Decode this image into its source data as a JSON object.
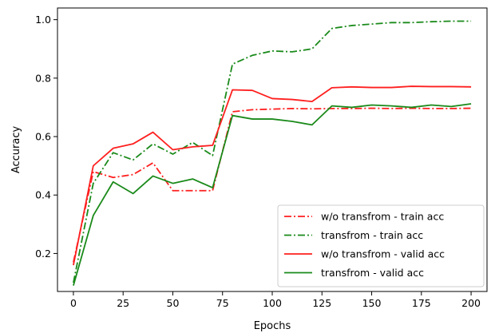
{
  "chart_data": {
    "type": "line",
    "title": "",
    "xlabel": "Epochs",
    "ylabel": "Accuracy",
    "xlim": [
      -8,
      208
    ],
    "ylim": [
      0.07,
      1.04
    ],
    "xticks": [
      0,
      25,
      50,
      75,
      100,
      125,
      150,
      175,
      200
    ],
    "yticks": [
      0.2,
      0.4,
      0.6,
      0.8,
      1.0
    ],
    "ytick_labels": [
      "0.2",
      "0.4",
      "0.6",
      "0.8",
      "1.0"
    ],
    "grid": false,
    "legend": "lower-right",
    "x": [
      0,
      10,
      20,
      30,
      40,
      50,
      60,
      70,
      80,
      90,
      100,
      110,
      120,
      130,
      140,
      150,
      160,
      170,
      180,
      190,
      200
    ],
    "series": [
      {
        "name": "w/o transfrom - train acc",
        "color": "#ff1f1f",
        "style": "dashdot",
        "values": [
          0.17,
          0.48,
          0.46,
          0.47,
          0.51,
          0.415,
          0.415,
          0.415,
          0.685,
          0.692,
          0.694,
          0.696,
          0.695,
          0.696,
          0.696,
          0.697,
          0.696,
          0.697,
          0.696,
          0.696,
          0.697
        ]
      },
      {
        "name": "transfrom - train acc",
        "color": "#1a8a1a",
        "style": "dashdot",
        "values": [
          0.1,
          0.44,
          0.545,
          0.52,
          0.575,
          0.54,
          0.58,
          0.535,
          0.848,
          0.878,
          0.893,
          0.89,
          0.9,
          0.97,
          0.98,
          0.985,
          0.99,
          0.99,
          0.993,
          0.995,
          0.995
        ]
      },
      {
        "name": "w/o transfrom - valid acc",
        "color": "#ff1f1f",
        "style": "solid",
        "values": [
          0.16,
          0.5,
          0.56,
          0.575,
          0.615,
          0.555,
          0.565,
          0.57,
          0.76,
          0.758,
          0.73,
          0.727,
          0.72,
          0.767,
          0.77,
          0.768,
          0.768,
          0.772,
          0.771,
          0.771,
          0.77
        ]
      },
      {
        "name": "transfrom - valid acc",
        "color": "#1a8a1a",
        "style": "solid",
        "values": [
          0.09,
          0.33,
          0.445,
          0.405,
          0.465,
          0.44,
          0.455,
          0.425,
          0.672,
          0.66,
          0.66,
          0.652,
          0.64,
          0.705,
          0.7,
          0.708,
          0.705,
          0.7,
          0.708,
          0.703,
          0.712
        ]
      }
    ]
  }
}
